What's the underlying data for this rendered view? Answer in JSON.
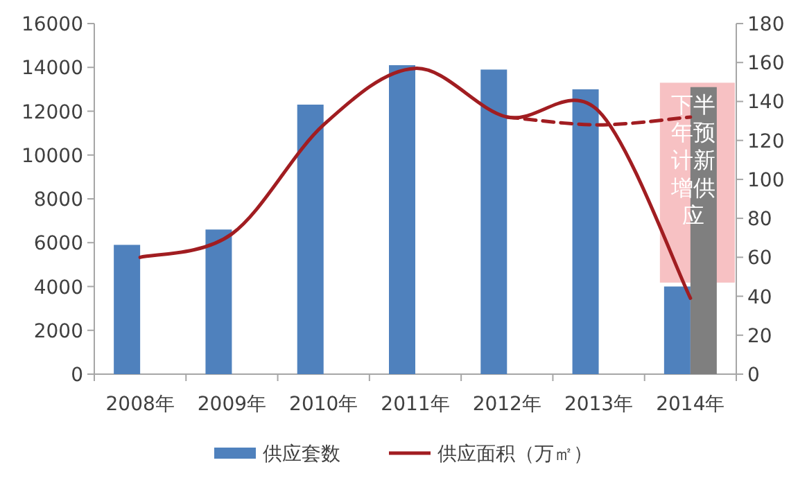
{
  "chart_data": {
    "type": "bar",
    "categories": [
      "2008年",
      "2009年",
      "2010年",
      "2011年",
      "2012年",
      "2013年",
      "2014年"
    ],
    "series": [
      {
        "name": "供应套数",
        "color": "#4f81bd",
        "values": [
          5900,
          6600,
          12300,
          14100,
          13900,
          13000,
          4000
        ]
      },
      {
        "color": "#7f7f7f",
        "values": [
          null,
          null,
          null,
          null,
          null,
          null,
          13100
        ]
      },
      {
        "name": "供应面积（万㎡）",
        "type": "line",
        "axis": "y2",
        "color": "#a11d21",
        "values": [
          60,
          72,
          128,
          157,
          132,
          135,
          39
        ]
      },
      {
        "type": "line",
        "axis": "y2",
        "color": "#a11d21",
        "line_style": "dashed",
        "values": [
          null,
          null,
          null,
          null,
          132,
          128,
          132
        ]
      }
    ],
    "ylim": [
      0,
      16000
    ],
    "yticks": [
      0,
      2000,
      4000,
      6000,
      8000,
      10000,
      12000,
      14000,
      16000
    ],
    "y2lim": [
      0,
      180
    ],
    "y2ticks": [
      0,
      20,
      40,
      60,
      80,
      100,
      120,
      140,
      160,
      180
    ],
    "annotations": [
      "下半年预计新增供应"
    ],
    "grid": false,
    "legend": "bottom"
  }
}
